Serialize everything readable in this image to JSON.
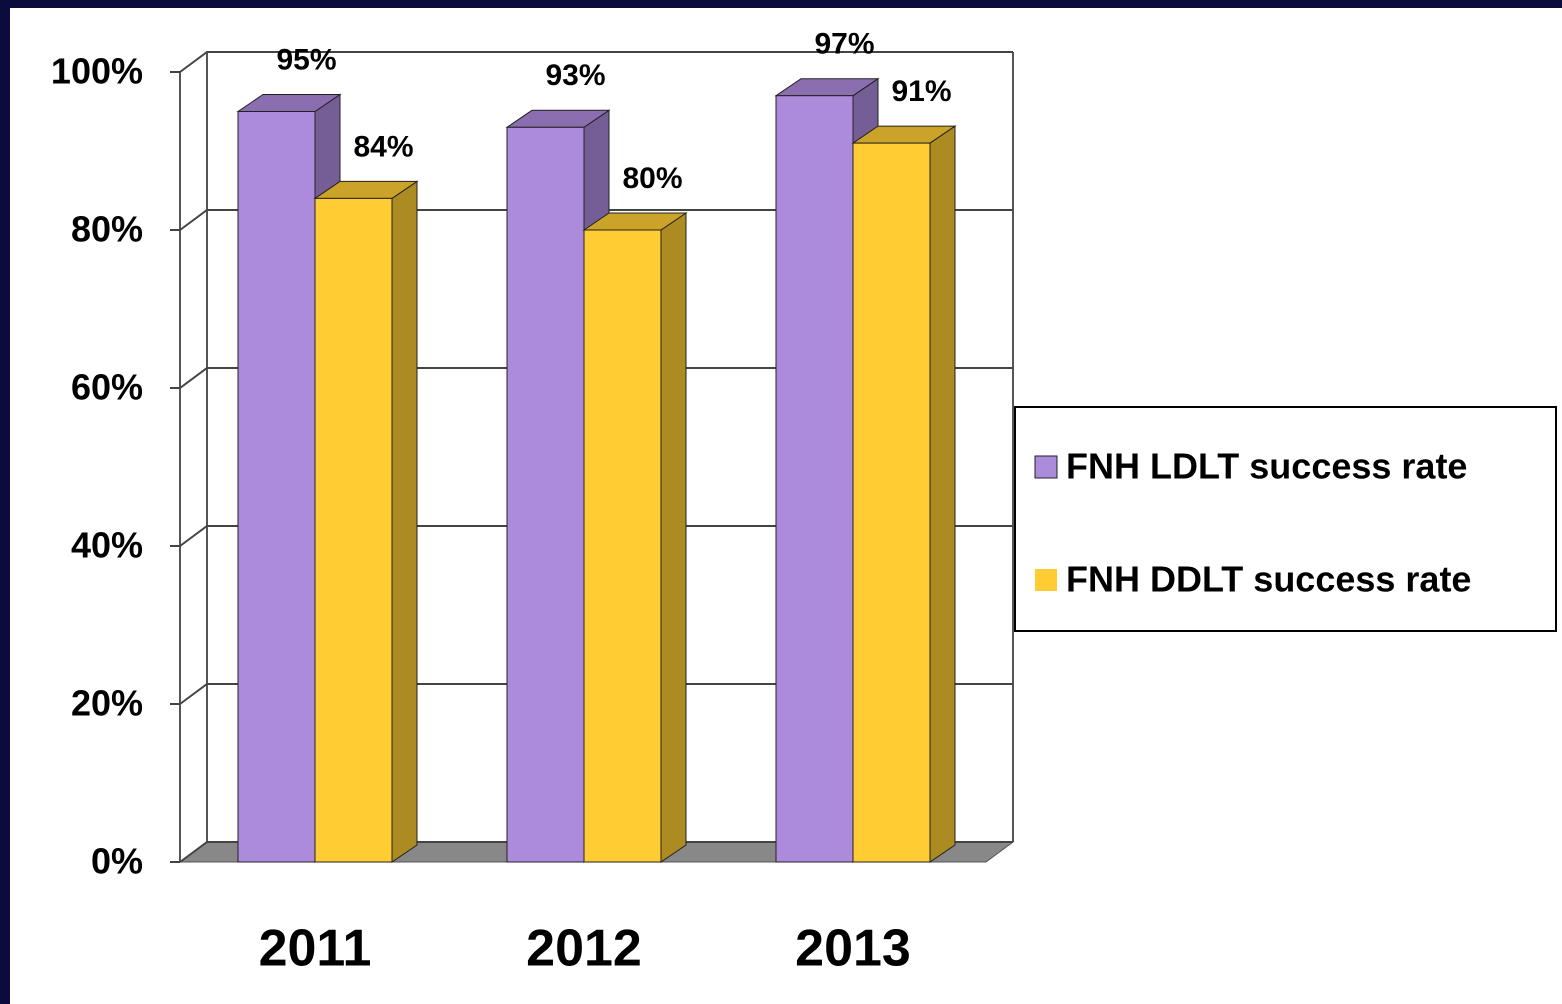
{
  "chart_data": {
    "type": "bar3d",
    "categories": [
      "2011",
      "2012",
      "2013"
    ],
    "series": [
      {
        "name": "FNH LDLT success rate",
        "color": "#ac8adc",
        "values": [
          95,
          93,
          97
        ],
        "value_labels": [
          "95%",
          "93%",
          "97%"
        ]
      },
      {
        "name": "FNH DDLT success rate",
        "color": "#ffcc33",
        "values": [
          84,
          80,
          91
        ],
        "value_labels": [
          "84%",
          "80%",
          "91%"
        ]
      }
    ],
    "ylim": [
      0,
      100
    ],
    "yticks": [
      {
        "value": 0,
        "label": "0%"
      },
      {
        "value": 20,
        "label": "20%"
      },
      {
        "value": 40,
        "label": "40%"
      },
      {
        "value": 60,
        "label": "60%"
      },
      {
        "value": 80,
        "label": "80%"
      },
      {
        "value": 100,
        "label": "100%"
      }
    ],
    "grid": true,
    "legend": "right"
  }
}
